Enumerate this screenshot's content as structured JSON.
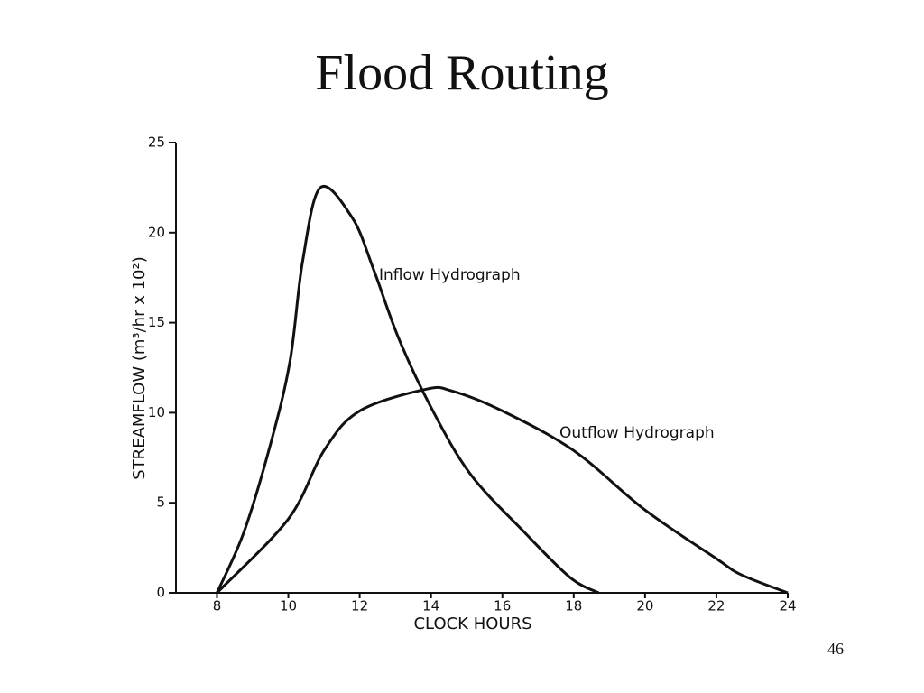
{
  "chart_data": {
    "type": "line",
    "title": "Flood Routing",
    "xlabel": "CLOCK HOURS",
    "ylabel": "STREAMFLOW (m³/hr x 10²)",
    "xlim": [
      6.85,
      24
    ],
    "xticks": [
      8,
      10,
      12,
      14,
      16,
      18,
      20,
      22,
      24
    ],
    "ylim": [
      0,
      25
    ],
    "yticks": [
      0,
      5,
      10,
      15,
      20,
      25
    ],
    "series": [
      {
        "name": "Inflow Hydrograph",
        "color": "#111111",
        "x": [
          8,
          8.76,
          9.52,
          10.05,
          10.4,
          10.9,
          11.8,
          12.4,
          13.1,
          14,
          15.1,
          16.6,
          17.9,
          18.7
        ],
        "values": [
          0,
          3.4,
          8.4,
          12.9,
          18.4,
          22.5,
          20.8,
          17.9,
          14.1,
          10.3,
          6.6,
          3.4,
          0.85,
          0
        ]
      },
      {
        "name": "Outflow Hydrograph",
        "color": "#111111",
        "x": [
          8,
          10,
          11,
          12,
          13.85,
          14.6,
          16,
          18,
          20,
          22,
          22.7,
          24
        ],
        "values": [
          0,
          4.1,
          7.9,
          10.1,
          11.3,
          11.2,
          10.1,
          7.9,
          4.6,
          1.9,
          1.0,
          0
        ]
      }
    ],
    "page_number": "46"
  }
}
